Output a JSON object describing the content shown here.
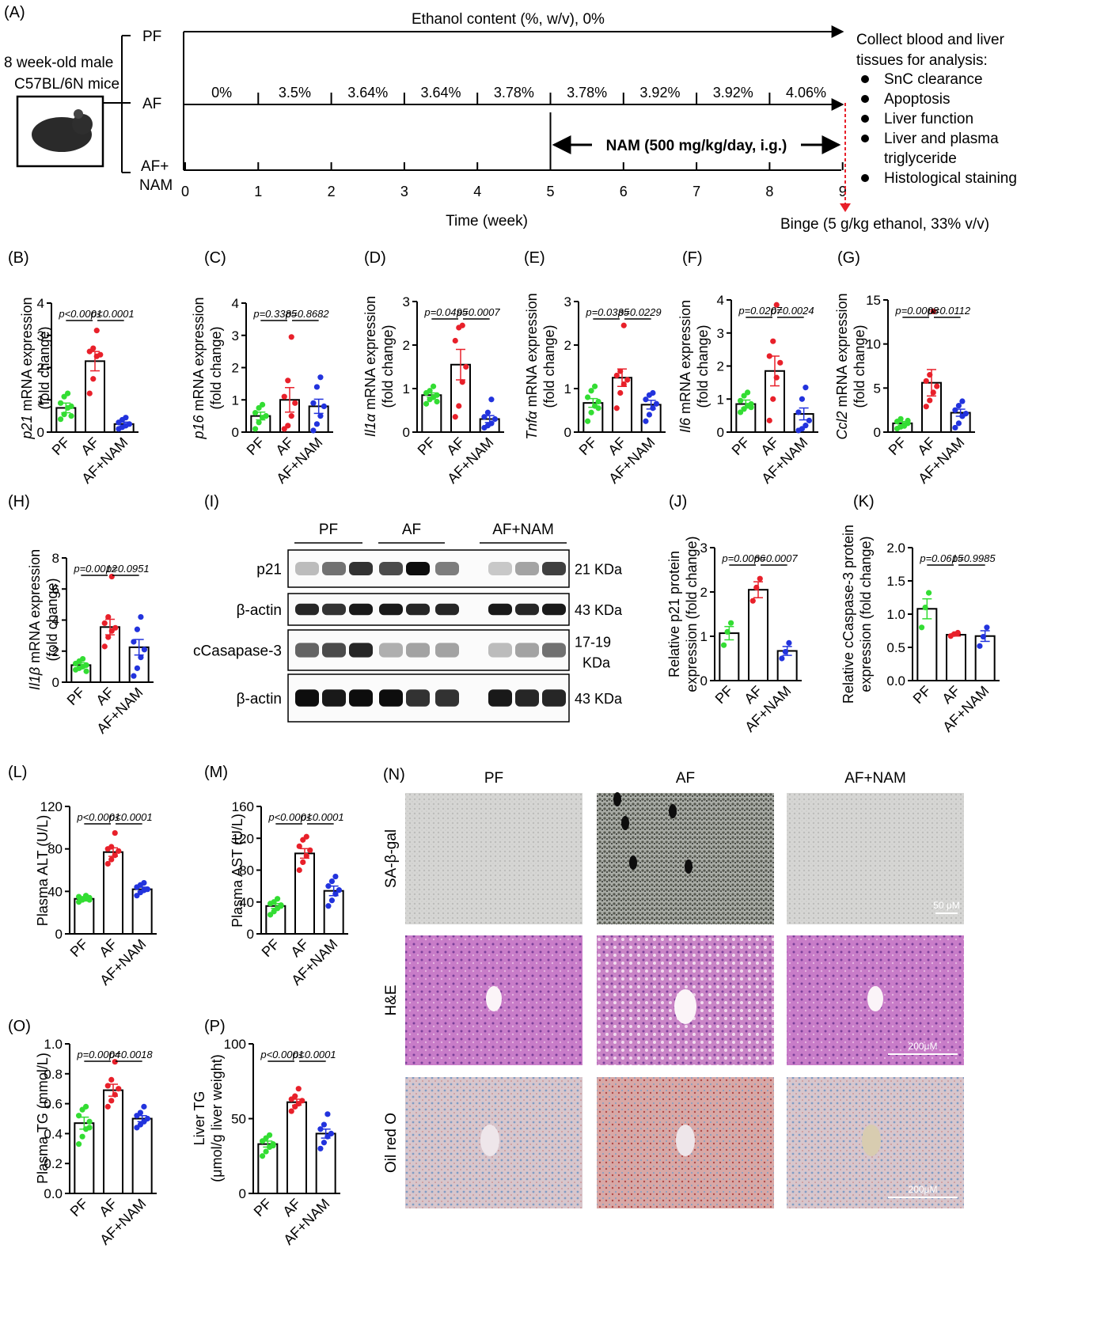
{
  "colors": {
    "PF": "#33dd33",
    "AF": "#e8202a",
    "AFNAM": "#2233dd",
    "sig": "#000000"
  },
  "panelA": {
    "letter": "(A)",
    "mouse_label1": "8 week-old male",
    "mouse_label2": "C57BL/6N mice",
    "groups": [
      "PF",
      "AF",
      "AF+",
      "NAM"
    ],
    "pf_title": "Ethanol content (%, w/v), 0%",
    "af_percents": [
      "0%",
      "3.5%",
      "3.64%",
      "3.64%",
      "3.78%",
      "3.78%",
      "3.92%",
      "3.92%",
      "4.06%"
    ],
    "nam_label": "NAM (500 mg/kg/day, i.g.)",
    "week_ticks": [
      "0",
      "1",
      "2",
      "3",
      "4",
      "5",
      "6",
      "7",
      "8",
      "9"
    ],
    "time_label": "Time (week)",
    "binge_label": "Binge (5 g/kg ethanol, 33% v/v)",
    "collect_title1": "Collect blood and liver",
    "collect_title2": "tissues for analysis:",
    "collect_items": [
      "SnC clearance",
      "Apoptosis",
      "Liver function",
      "Liver and plasma",
      "triglyceride",
      "Histological staining"
    ]
  },
  "chart_data": [
    {
      "id": "B",
      "type": "bar",
      "letter": "(B)",
      "ylabel_italic": "p21",
      "ylabel_rest": " mRNA expression",
      "ylabel2": "(fold change)",
      "ylim": [
        0,
        4
      ],
      "yticks": [
        "0",
        "1",
        "2",
        "3",
        "4"
      ],
      "categories": [
        "PF",
        "AF",
        "AF+NAM"
      ],
      "means": [
        0.75,
        2.2,
        0.25
      ],
      "sem": [
        0.15,
        0.3,
        0.06
      ],
      "points": [
        [
          0.4,
          0.55,
          0.75,
          0.8,
          0.9,
          1.1,
          1.2,
          0.5
        ],
        [
          1.2,
          1.65,
          2.35,
          2.4,
          2.5,
          2.6,
          3.15
        ],
        [
          0.1,
          0.15,
          0.2,
          0.25,
          0.3,
          0.38,
          0.45
        ]
      ],
      "p_values": [
        "p<0.0001",
        "p<0.0001"
      ]
    },
    {
      "id": "C",
      "type": "bar",
      "letter": "(C)",
      "ylabel_italic": "p16",
      "ylabel_rest": " mRNA expression",
      "ylabel2": "(fold change)",
      "ylim": [
        0,
        4
      ],
      "yticks": [
        "0",
        "1",
        "2",
        "3",
        "4"
      ],
      "categories": [
        "PF",
        "AF",
        "AF+NAM"
      ],
      "means": [
        0.5,
        1.0,
        0.8
      ],
      "sem": [
        0.12,
        0.38,
        0.22
      ],
      "points": [
        [
          0.1,
          0.3,
          0.45,
          0.5,
          0.6,
          0.75,
          0.85,
          0.5
        ],
        [
          0.1,
          0.2,
          0.5,
          0.9,
          1.1,
          1.6,
          2.95
        ],
        [
          0.05,
          0.25,
          0.5,
          0.8,
          0.9,
          1.4,
          1.7
        ]
      ],
      "p_values": [
        "p=0.3385",
        "p=0.8682"
      ]
    },
    {
      "id": "D",
      "type": "bar",
      "letter": "(D)",
      "ylabel_italic": "Il1α",
      "ylabel_rest": " mRNA expression",
      "ylabel2": "(fold change)",
      "ylim": [
        0,
        3
      ],
      "yticks": [
        "0",
        "1",
        "2",
        "3"
      ],
      "categories": [
        "PF",
        "AF",
        "AF+NAM"
      ],
      "means": [
        0.85,
        1.55,
        0.3
      ],
      "sem": [
        0.05,
        0.35,
        0.08
      ],
      "points": [
        [
          0.65,
          0.75,
          0.8,
          0.85,
          0.9,
          0.95,
          1.05,
          0.7
        ],
        [
          0.35,
          0.6,
          1.15,
          1.5,
          2.1,
          2.4,
          2.45
        ],
        [
          0.1,
          0.15,
          0.2,
          0.3,
          0.35,
          0.45,
          0.75
        ]
      ],
      "p_values": [
        "p=0.0495",
        "p=0.0007"
      ]
    },
    {
      "id": "E",
      "type": "bar",
      "letter": "(E)",
      "ylabel_italic": "Tnfα",
      "ylabel_rest": " mRNA expression",
      "ylabel2": "(fold change)",
      "ylim": [
        0,
        3
      ],
      "yticks": [
        "0",
        "1",
        "2",
        "3"
      ],
      "categories": [
        "PF",
        "AF",
        "AF+NAM"
      ],
      "means": [
        0.67,
        1.25,
        0.63
      ],
      "sem": [
        0.1,
        0.2,
        0.1
      ],
      "points": [
        [
          0.25,
          0.45,
          0.6,
          0.7,
          0.8,
          0.95,
          1.05,
          0.55
        ],
        [
          0.55,
          0.9,
          1.1,
          1.2,
          1.3,
          1.4,
          2.45
        ],
        [
          0.25,
          0.4,
          0.55,
          0.65,
          0.75,
          0.85,
          0.9
        ]
      ],
      "p_values": [
        "p=0.0335",
        "p=0.0229"
      ]
    },
    {
      "id": "F",
      "type": "bar",
      "letter": "(F)",
      "ylabel_italic": "Il6",
      "ylabel_rest": " mRNA expression",
      "ylabel2": "(fold change)",
      "ylim": [
        0,
        4
      ],
      "yticks": [
        "0",
        "1",
        "2",
        "3",
        "4"
      ],
      "categories": [
        "PF",
        "AF",
        "AF+NAM"
      ],
      "means": [
        0.85,
        1.85,
        0.55
      ],
      "sem": [
        0.12,
        0.45,
        0.18
      ],
      "points": [
        [
          0.6,
          0.7,
          0.8,
          0.85,
          0.95,
          1.1,
          1.2,
          0.75
        ],
        [
          0.35,
          1.0,
          1.65,
          2.1,
          2.3,
          2.75,
          3.85
        ],
        [
          0.05,
          0.1,
          0.2,
          0.35,
          0.6,
          1.0,
          1.35
        ]
      ],
      "p_values": [
        "p=0.0207",
        "p=0.0024"
      ]
    },
    {
      "id": "G",
      "type": "bar",
      "letter": "(G)",
      "ylabel_italic": "Ccl2",
      "ylabel_rest": " mRNA expression",
      "ylabel2": "(fold change)",
      "ylim": [
        0,
        15
      ],
      "yticks": [
        "0",
        "5",
        "10",
        "15"
      ],
      "categories": [
        "PF",
        "AF",
        "AF+NAM"
      ],
      "means": [
        1.0,
        5.6,
        2.2
      ],
      "sem": [
        0.2,
        1.5,
        0.4
      ],
      "points": [
        [
          0.4,
          0.6,
          0.8,
          1.0,
          1.2,
          1.5,
          0.7,
          1.3
        ],
        [
          2.9,
          3.6,
          4.5,
          5.2,
          5.8,
          6.5,
          13.7
        ],
        [
          0.5,
          1.0,
          1.8,
          2.1,
          2.5,
          3.0,
          3.5
        ]
      ],
      "p_values": [
        "p=0.0008",
        "p=0.0112"
      ]
    },
    {
      "id": "H",
      "type": "bar",
      "letter": "(H)",
      "ylabel_italic": "Il1β",
      "ylabel_rest": " mRNA expression",
      "ylabel2": "(fold change)",
      "ylim": [
        0,
        8
      ],
      "yticks": [
        "0",
        "2",
        "4",
        "6",
        "8"
      ],
      "categories": [
        "PF",
        "AF",
        "AF+NAM"
      ],
      "means": [
        1.1,
        3.55,
        2.25
      ],
      "sem": [
        0.15,
        0.5,
        0.5
      ],
      "points": [
        [
          0.8,
          0.9,
          1.0,
          1.1,
          1.2,
          1.35,
          1.5,
          0.7
        ],
        [
          2.3,
          2.9,
          3.3,
          3.5,
          3.8,
          4.2,
          6.8
        ],
        [
          0.4,
          0.9,
          1.6,
          2.1,
          2.6,
          3.4,
          4.2
        ]
      ],
      "p_values": [
        "p=0.0012",
        "p=0.0951"
      ]
    },
    {
      "id": "J",
      "type": "bar",
      "letter": "(J)",
      "ylabel1": "Relative p21 protein",
      "ylabel2": "expression (fold change)",
      "ylim": [
        0,
        3
      ],
      "yticks": [
        "0",
        "1",
        "2",
        "3"
      ],
      "categories": [
        "PF",
        "AF",
        "AF+NAM"
      ],
      "means": [
        1.07,
        2.05,
        0.67
      ],
      "sem": [
        0.15,
        0.18,
        0.1
      ],
      "points": [
        [
          0.8,
          1.1,
          1.3
        ],
        [
          1.8,
          2.1,
          2.3
        ],
        [
          0.5,
          0.65,
          0.85
        ]
      ],
      "p_values": [
        "p=0.0066",
        "p=0.0007"
      ]
    },
    {
      "id": "K",
      "type": "bar",
      "letter": "(K)",
      "ylabel1": "Relative cCaspase-3 protein",
      "ylabel2": "expression (fold change)",
      "ylim": [
        0,
        2.0
      ],
      "yticks": [
        "0.0",
        "0.5",
        "1.0",
        "1.5",
        "2.0"
      ],
      "categories": [
        "PF",
        "AF",
        "AF+NAM"
      ],
      "means": [
        1.08,
        0.69,
        0.67
      ],
      "sem": [
        0.15,
        0.02,
        0.08
      ],
      "points": [
        [
          0.8,
          1.1,
          1.32
        ],
        [
          0.67,
          0.7,
          0.72
        ],
        [
          0.52,
          0.66,
          0.8
        ]
      ],
      "p_values": [
        "p=0.0615",
        "p=0.9985"
      ]
    },
    {
      "id": "L",
      "type": "bar",
      "letter": "(L)",
      "ylabel1": "Plasma ALT (U/L)",
      "ylim": [
        0,
        120
      ],
      "yticks": [
        "0",
        "40",
        "80",
        "120"
      ],
      "categories": [
        "PF",
        "AF",
        "AF+NAM"
      ],
      "means": [
        33,
        77,
        42
      ],
      "sem": [
        1,
        4,
        2
      ],
      "points": [
        [
          30,
          32,
          33,
          34,
          35,
          33,
          36,
          32
        ],
        [
          66,
          70,
          74,
          78,
          80,
          82,
          95
        ],
        [
          36,
          39,
          41,
          42,
          44,
          46,
          48
        ]
      ],
      "p_values": [
        "p<0.0001",
        "p<0.0001"
      ]
    },
    {
      "id": "M",
      "type": "bar",
      "letter": "(M)",
      "ylabel1": "Plasma AST (U/L)",
      "ylim": [
        0,
        160
      ],
      "yticks": [
        "0",
        "40",
        "80",
        "120",
        "160"
      ],
      "categories": [
        "PF",
        "AF",
        "AF+NAM"
      ],
      "means": [
        35,
        101,
        54
      ],
      "sem": [
        3,
        6,
        6
      ],
      "points": [
        [
          24,
          28,
          32,
          35,
          38,
          40,
          44,
          36
        ],
        [
          80,
          90,
          98,
          105,
          110,
          118,
          122
        ],
        [
          35,
          42,
          50,
          55,
          60,
          66,
          72
        ]
      ],
      "p_values": [
        "p<0.0001",
        "p<0.0001"
      ]
    },
    {
      "id": "O",
      "type": "bar",
      "letter": "(O)",
      "ylabel1": "Plasma TG (mmol/L)",
      "ylim": [
        0,
        1.0
      ],
      "yticks": [
        "0.0",
        "0.2",
        "0.4",
        "0.6",
        "0.8",
        "1.0"
      ],
      "categories": [
        "PF",
        "AF",
        "AF+NAM"
      ],
      "means": [
        0.47,
        0.69,
        0.5
      ],
      "sem": [
        0.04,
        0.04,
        0.02
      ],
      "points": [
        [
          0.33,
          0.38,
          0.43,
          0.48,
          0.52,
          0.56,
          0.58,
          0.44
        ],
        [
          0.58,
          0.62,
          0.66,
          0.7,
          0.72,
          0.76,
          0.88
        ],
        [
          0.44,
          0.46,
          0.48,
          0.5,
          0.52,
          0.54,
          0.58
        ]
      ],
      "p_values": [
        "p=0.0004",
        "p=0.0018"
      ]
    },
    {
      "id": "P",
      "type": "bar",
      "letter": "(P)",
      "ylabel1": "Liver TG",
      "ylabel2": "(μmol/g liver weight)",
      "ylim": [
        0,
        100
      ],
      "yticks": [
        "0",
        "50",
        "100"
      ],
      "categories": [
        "PF",
        "AF",
        "AF+NAM"
      ],
      "means": [
        33,
        61,
        40
      ],
      "sem": [
        2,
        2,
        3
      ],
      "points": [
        [
          25,
          28,
          31,
          33,
          35,
          37,
          39,
          32
        ],
        [
          55,
          58,
          60,
          62,
          63,
          65,
          70
        ],
        [
          30,
          34,
          38,
          40,
          43,
          46,
          53
        ]
      ],
      "p_values": [
        "p<0.0001",
        "p<0.0001"
      ]
    }
  ],
  "blot": {
    "letter": "(I)",
    "groups": [
      "PF",
      "AF",
      "AF+NAM"
    ],
    "rows": [
      {
        "label": "p21",
        "kda": "21 KDa"
      },
      {
        "label": "β-actin",
        "kda": "43 KDa"
      },
      {
        "label": "cCasapase-3",
        "kda": "17-19",
        "kda2": "KDa"
      },
      {
        "label": "β-actin",
        "kda": "43 KDa"
      }
    ]
  },
  "histology": {
    "letter": "(N)",
    "columns": [
      "PF",
      "AF",
      "AF+NAM"
    ],
    "rows": [
      "SA-β-gal",
      "H&E",
      "Oil red O"
    ],
    "scalebars": [
      "50 μM",
      "200μM",
      "200μM"
    ]
  }
}
